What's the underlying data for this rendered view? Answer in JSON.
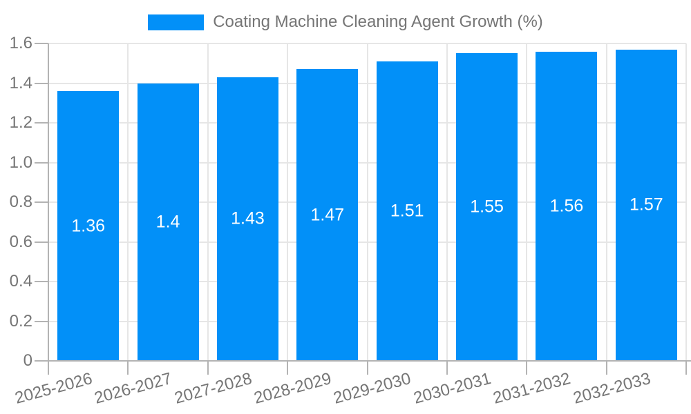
{
  "chart_data": {
    "type": "bar",
    "title": "Coating Machine Cleaning Agent Growth (%)",
    "categories": [
      "2025-2026",
      "2026-2027",
      "2027-2028",
      "2028-2029",
      "2029-2030",
      "2030-2031",
      "2031-2032",
      "2032-2033"
    ],
    "values": [
      1.36,
      1.4,
      1.43,
      1.47,
      1.51,
      1.55,
      1.56,
      1.57
    ],
    "value_labels": [
      "1.36",
      "1.4",
      "1.43",
      "1.47",
      "1.51",
      "1.55",
      "1.56",
      "1.57"
    ],
    "xlabel": "",
    "ylabel": "",
    "ylim": [
      0,
      1.6
    ],
    "ytick_step": 0.2,
    "ytick_labels": [
      "0",
      "0.2",
      "0.4",
      "0.6",
      "0.8",
      "1.0",
      "1.2",
      "1.4",
      "1.6"
    ],
    "grid": "on",
    "legend_position": "top-center",
    "colors": {
      "bar": "#0290f8",
      "value_label": "#ffffff",
      "axis_text": "#757575",
      "gridline": "#e6e6e6",
      "axis_line": "#b3b3b3"
    }
  }
}
